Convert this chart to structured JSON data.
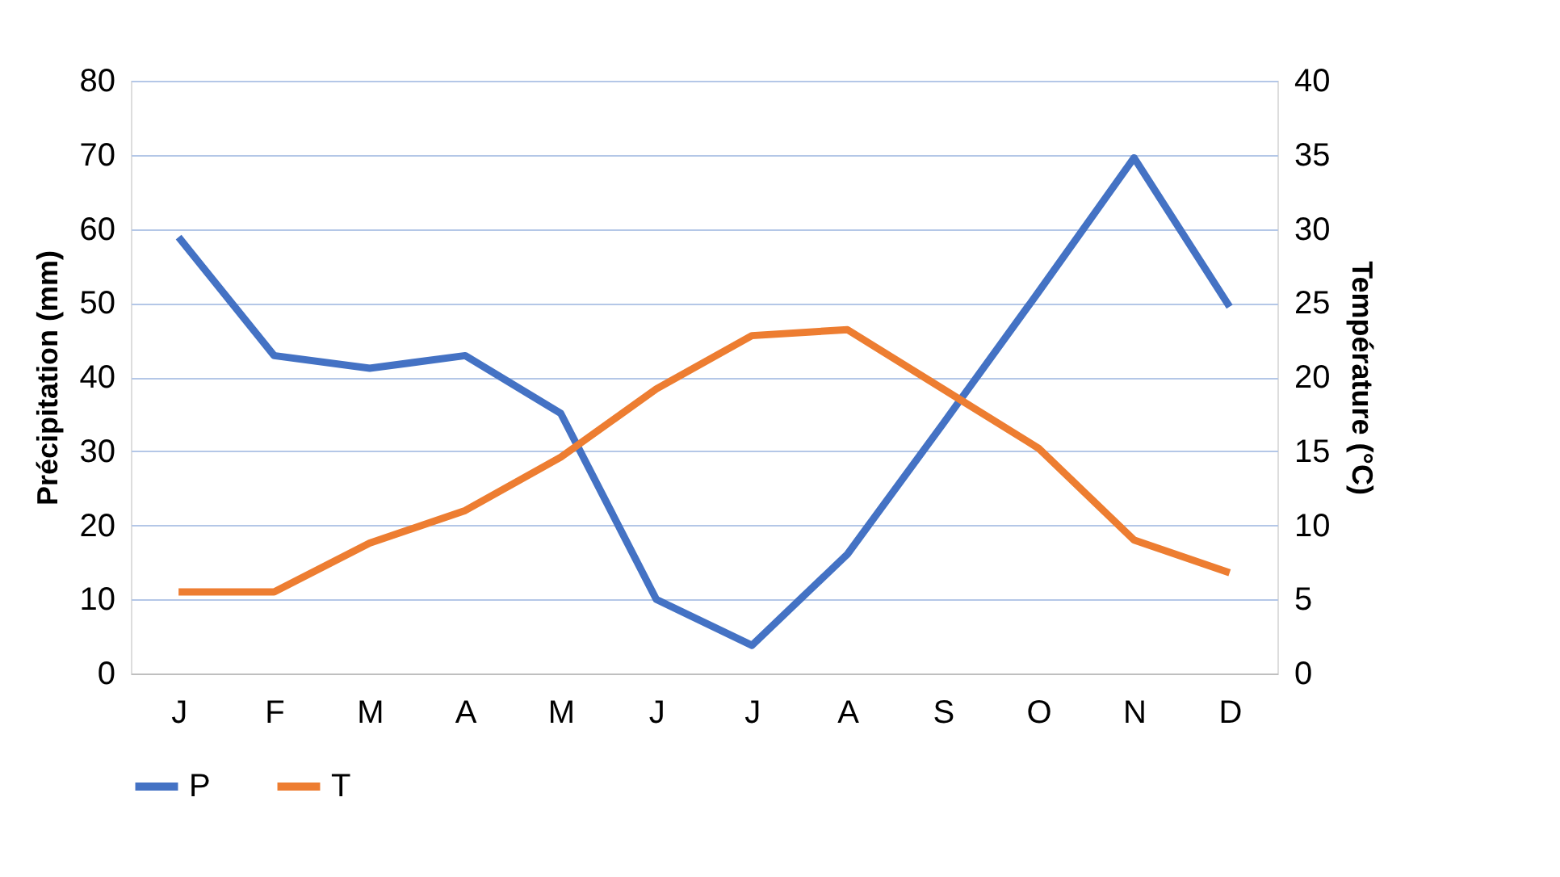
{
  "chart_data": {
    "type": "line",
    "categories": [
      "J",
      "F",
      "M",
      "A",
      "M",
      "J",
      "J",
      "A",
      "S",
      "O",
      "N",
      "D"
    ],
    "ylabel": "Précipitation (mm)",
    "y2label": "Température (°C)",
    "ylim": [
      0,
      80
    ],
    "yticks": [
      0,
      10,
      20,
      30,
      40,
      50,
      60,
      70,
      80
    ],
    "y2lim": [
      0,
      40
    ],
    "y2ticks": [
      0,
      5,
      10,
      15,
      20,
      25,
      30,
      35,
      40
    ],
    "series": [
      {
        "name": "P",
        "color": "#4472c4",
        "values": [
          58.9,
          42.9,
          41.2,
          42.9,
          35.1,
          10.0,
          3.8,
          16.1,
          33.7,
          51.5,
          69.6,
          49.5
        ]
      },
      {
        "name": "T",
        "color": "#ed7d31",
        "axis": "y2",
        "values": [
          5.5,
          5.5,
          8.8,
          11.0,
          14.6,
          19.2,
          22.8,
          23.2,
          19.2,
          15.2,
          9.0,
          6.8
        ]
      }
    ],
    "grid": "y",
    "legend": "bottom",
    "marker": "none",
    "line_style": "solid"
  }
}
